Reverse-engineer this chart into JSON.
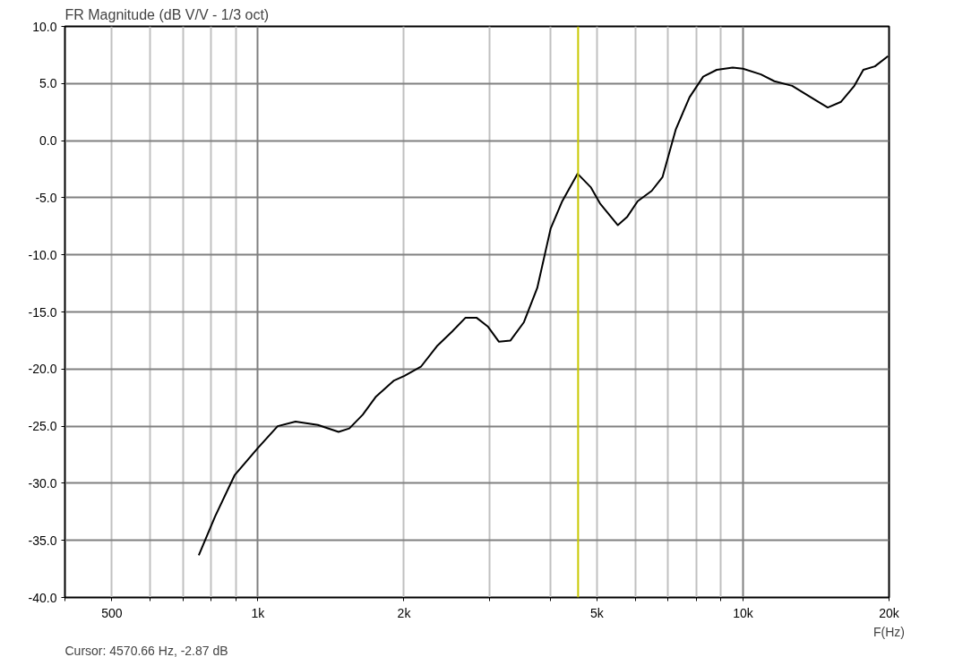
{
  "chart_data": {
    "type": "line",
    "title": "FR Magnitude (dB V/V - 1/3 oct)",
    "xlabel": "F(Hz)",
    "log": "x",
    "grid": true,
    "marker": "none",
    "line_style": "solid",
    "xlim": [
      400,
      20000
    ],
    "xticks": [
      {
        "value": 400,
        "label": null
      },
      {
        "value": 500,
        "label": "500"
      },
      {
        "value": 600,
        "label": null
      },
      {
        "value": 700,
        "label": null
      },
      {
        "value": 800,
        "label": null
      },
      {
        "value": 900,
        "label": null
      },
      {
        "value": 1000,
        "label": "1k"
      },
      {
        "value": 2000,
        "label": "2k"
      },
      {
        "value": 3000,
        "label": null
      },
      {
        "value": 4000,
        "label": null
      },
      {
        "value": 5000,
        "label": "5k"
      },
      {
        "value": 6000,
        "label": null
      },
      {
        "value": 7000,
        "label": null
      },
      {
        "value": 8000,
        "label": null
      },
      {
        "value": 9000,
        "label": null
      },
      {
        "value": 10000,
        "label": "10k"
      },
      {
        "value": 20000,
        "label": "20k"
      }
    ],
    "ylim": [
      -40,
      10
    ],
    "yticks": [
      {
        "value": -40,
        "label": "-40.0"
      },
      {
        "value": -35,
        "label": "-35.0"
      },
      {
        "value": -30,
        "label": "-30.0"
      },
      {
        "value": -25,
        "label": "-25.0"
      },
      {
        "value": -20,
        "label": "-20.0"
      },
      {
        "value": -15,
        "label": "-15.0"
      },
      {
        "value": -10,
        "label": "-10.0"
      },
      {
        "value": -5,
        "label": "-5.0"
      },
      {
        "value": 0,
        "label": "0.0"
      },
      {
        "value": 5,
        "label": "5.0"
      },
      {
        "value": 10,
        "label": "10.0"
      }
    ],
    "ref_lines": [
      {
        "axis": "x",
        "value": 4570.66,
        "color": "#c8c800"
      }
    ],
    "annotations": [
      "Cursor: 4570.66 Hz, -2.87 dB"
    ],
    "series": [
      {
        "color": "#000000",
        "x": [
          755,
          816,
          895,
          1000,
          1098,
          1195,
          1329,
          1466,
          1543,
          1644,
          1752,
          1908,
          2005,
          2167,
          2338,
          2515,
          2679,
          2821,
          2981,
          3137,
          3316,
          3534,
          3765,
          4012,
          4240,
          4560,
          4858,
          5072,
          5520,
          5764,
          6065,
          6481,
          6822,
          7270,
          7758,
          8277,
          8826,
          9521,
          10000,
          10887,
          11604,
          12625,
          14034,
          14951,
          15926,
          16964,
          17700,
          18700,
          19900
        ],
        "values": [
          -36.3,
          -32.9,
          -29.3,
          -26.9,
          -25.0,
          -24.6,
          -24.9,
          -25.5,
          -25.2,
          -24.0,
          -22.4,
          -21.0,
          -20.6,
          -19.8,
          -18.0,
          -16.7,
          -15.5,
          -15.5,
          -16.3,
          -17.6,
          -17.5,
          -15.9,
          -12.9,
          -7.7,
          -5.3,
          -2.9,
          -4.1,
          -5.5,
          -7.4,
          -6.7,
          -5.3,
          -4.4,
          -3.2,
          1.0,
          3.8,
          5.6,
          6.2,
          6.4,
          6.3,
          5.8,
          5.2,
          4.8,
          3.6,
          2.9,
          3.4,
          4.8,
          6.2,
          6.5,
          7.4
        ]
      }
    ]
  }
}
